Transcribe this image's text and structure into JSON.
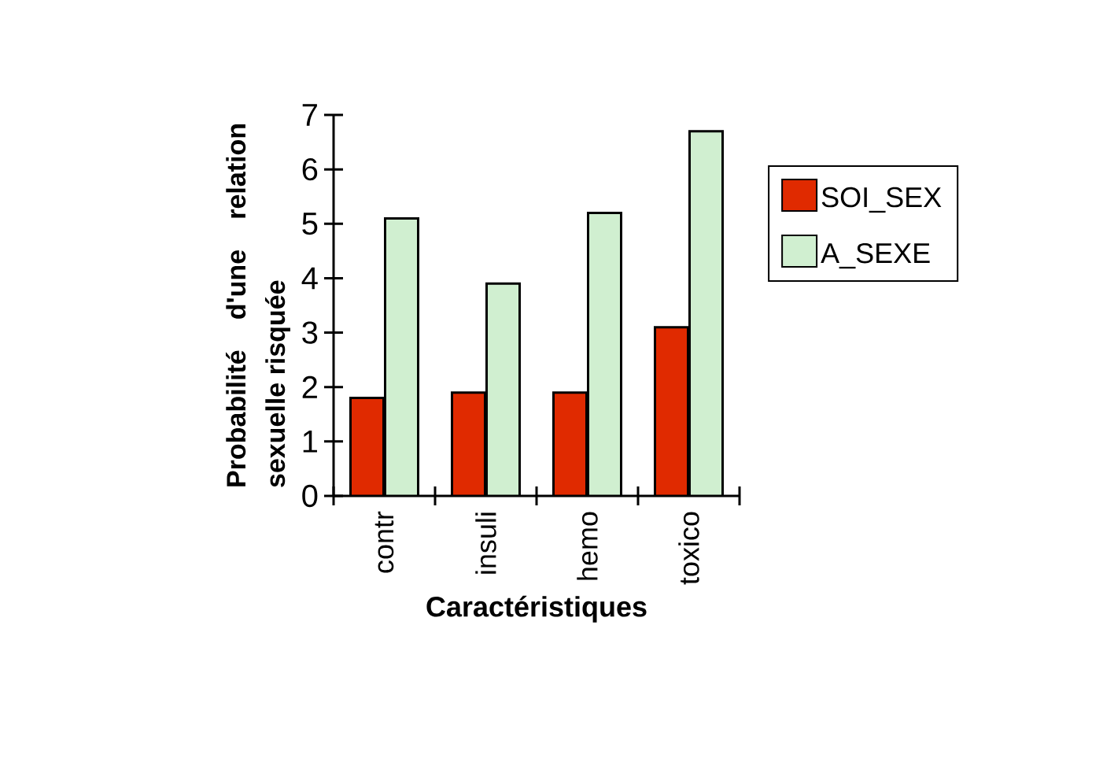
{
  "chart_data": {
    "type": "bar",
    "ylabel": "Probabilité d'une relation sexuelle risquée",
    "xlabel": "Caractéristiques",
    "categories": [
      "contr",
      "insuli",
      "hemo",
      "toxico"
    ],
    "series": [
      {
        "name": "SOI_SEX",
        "color": "#e02a00",
        "values": [
          1.8,
          1.9,
          1.9,
          3.1
        ]
      },
      {
        "name": "A_SEXE",
        "color": "#d0efd0",
        "values": [
          5.1,
          3.9,
          5.2,
          6.7
        ]
      }
    ],
    "ylim": [
      0,
      7
    ],
    "yticks": [
      0,
      1,
      2,
      3,
      4,
      5,
      6,
      7
    ],
    "grid": false,
    "legend": "right"
  }
}
